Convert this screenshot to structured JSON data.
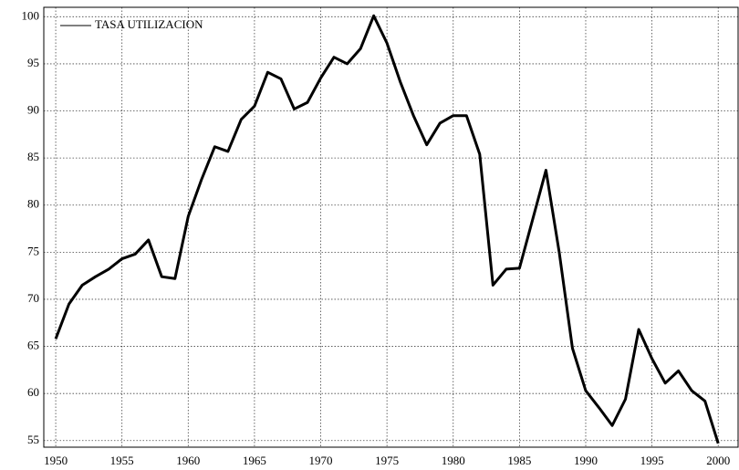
{
  "chart_data": {
    "type": "line",
    "x": [
      1950,
      1951,
      1952,
      1953,
      1954,
      1955,
      1956,
      1957,
      1958,
      1959,
      1960,
      1961,
      1962,
      1963,
      1964,
      1965,
      1966,
      1967,
      1968,
      1969,
      1970,
      1971,
      1972,
      1973,
      1974,
      1975,
      1976,
      1977,
      1978,
      1979,
      1980,
      1981,
      1982,
      1983,
      1984,
      1985,
      1986,
      1987,
      1988,
      1989,
      1990,
      1991,
      1992,
      1993,
      1994,
      1995,
      1996,
      1997,
      1998,
      1999,
      2000
    ],
    "series": [
      {
        "name": "TASA UTILIZACION",
        "color": "#000000",
        "values": [
          65.8,
          69.5,
          71.5,
          72.4,
          73.2,
          74.3,
          74.8,
          76.3,
          72.4,
          72.2,
          78.8,
          82.7,
          86.2,
          85.7,
          89.1,
          90.5,
          94.1,
          93.4,
          90.2,
          90.9,
          93.5,
          95.7,
          95.0,
          96.6,
          100.1,
          97.2,
          93.1,
          89.5,
          86.4,
          88.7,
          89.5,
          89.5,
          85.4,
          71.5,
          73.2,
          73.3,
          78.5,
          83.7,
          75.0,
          64.8,
          60.3,
          58.5,
          56.6,
          59.4,
          66.8,
          63.7,
          61.1,
          62.4,
          60.3,
          59.2,
          54.7
        ]
      }
    ],
    "xlim": [
      1949.1,
      2001.5
    ],
    "xticks": [
      1950,
      1955,
      1960,
      1965,
      1970,
      1975,
      1980,
      1985,
      1990,
      1995,
      2000
    ],
    "ylim": [
      54.3,
      101
    ],
    "yticks": [
      55,
      60,
      65,
      70,
      75,
      80,
      85,
      90,
      95,
      100
    ],
    "grid": true,
    "legend": "upper left"
  }
}
